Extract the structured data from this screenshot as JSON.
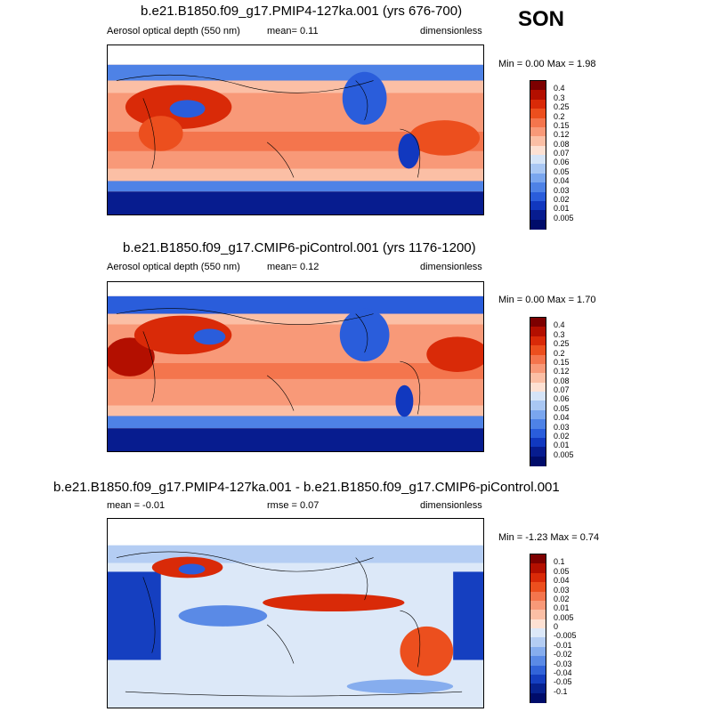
{
  "season": "SON",
  "panels": [
    {
      "title": "b.e21.B1850.f09_g17.PMIP4-127ka.001 (yrs 676-700)",
      "left_label": "Aerosol optical depth (550 nm)",
      "center_label": "mean=  0.11",
      "right_label": "dimensionless",
      "minmax": "Min =  0.00 Max =  1.98",
      "levels": [
        "0.4",
        "0.3",
        "0.25",
        "0.2",
        "0.15",
        "0.12",
        "0.08",
        "0.07",
        "0.06",
        "0.05",
        "0.04",
        "0.03",
        "0.02",
        "0.01",
        "0.005"
      ],
      "colors": [
        "#7d0000",
        "#b30f00",
        "#d92a08",
        "#ec4f1e",
        "#f4754d",
        "#f89978",
        "#fbbfa5",
        "#fde1d3",
        "#d5e4f7",
        "#a9c7f3",
        "#7aa6ee",
        "#4e82e6",
        "#2a5ddb",
        "#1138bf",
        "#071c8f",
        "#000c6a"
      ]
    },
    {
      "title": "b.e21.B1850.f09_g17.CMIP6-piControl.001 (yrs 1176-1200)",
      "left_label": "Aerosol optical depth (550 nm)",
      "center_label": "mean=  0.12",
      "right_label": "dimensionless",
      "minmax": "Min =  0.00 Max =  1.70",
      "levels": [
        "0.4",
        "0.3",
        "0.25",
        "0.2",
        "0.15",
        "0.12",
        "0.08",
        "0.07",
        "0.06",
        "0.05",
        "0.04",
        "0.03",
        "0.02",
        "0.01",
        "0.005"
      ],
      "colors": [
        "#7d0000",
        "#b30f00",
        "#d92a08",
        "#ec4f1e",
        "#f4754d",
        "#f89978",
        "#fbbfa5",
        "#fde1d3",
        "#d5e4f7",
        "#a9c7f3",
        "#7aa6ee",
        "#4e82e6",
        "#2a5ddb",
        "#1138bf",
        "#071c8f",
        "#000c6a"
      ]
    },
    {
      "title": "b.e21.B1850.f09_g17.PMIP4-127ka.001 - b.e21.B1850.f09_g17.CMIP6-piControl.001",
      "left_label": "mean =  -0.01",
      "center_label": "rmse =  0.07",
      "right_label": "dimensionless",
      "minmax": "Min =  -1.23 Max =  0.74",
      "levels": [
        "0.1",
        "0.05",
        "0.04",
        "0.03",
        "0.02",
        "0.01",
        "0.005",
        "0",
        "-0.005",
        "-0.01",
        "-0.02",
        "-0.03",
        "-0.04",
        "-0.05",
        "-0.1"
      ],
      "colors": [
        "#7d0000",
        "#b30f00",
        "#d92a08",
        "#ec4f1e",
        "#f4754d",
        "#f89978",
        "#fbbfa5",
        "#fde1d3",
        "#dce8f8",
        "#b4cdf3",
        "#86adee",
        "#5a8ae6",
        "#3264d9",
        "#153fc0",
        "#07228f",
        "#000c6a"
      ]
    }
  ]
}
